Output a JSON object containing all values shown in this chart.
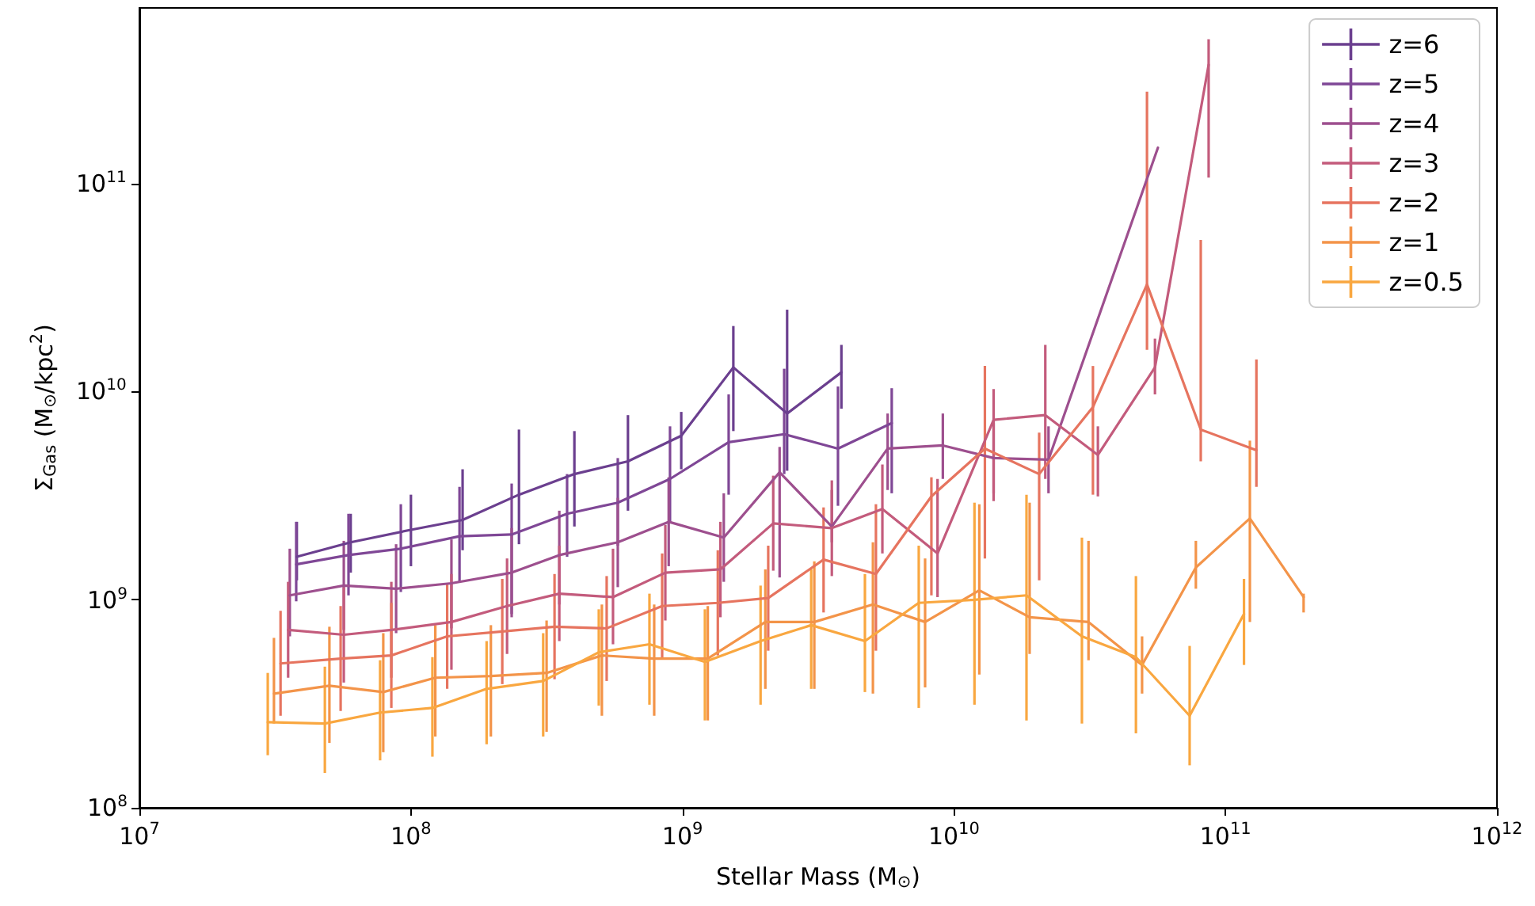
{
  "chart_data": {
    "type": "line",
    "xlabel": "Stellar Mass (M$_{⊙}$)",
    "ylabel": "Σ$_{Gas}$ (M$_{⊙}$/kpc$^{2}$)",
    "log": "xy",
    "grid": false,
    "legend": "top right",
    "marker": "none",
    "line_style": "solid",
    "xlim": [
      10000000.0,
      1000000000000.0
    ],
    "ylim": [
      100000000.0,
      700000000000.0
    ],
    "xticks": [
      {
        "value": 10000000.0,
        "label": "10$^{7}$"
      },
      {
        "value": 100000000.0,
        "label": "10$^{8}$"
      },
      {
        "value": 1000000000.0,
        "label": "10$^{9}$"
      },
      {
        "value": 10000000000.0,
        "label": "10$^{10}$"
      },
      {
        "value": 100000000000.0,
        "label": "10$^{11}$"
      },
      {
        "value": 1000000000000.0,
        "label": "10$^{12}$"
      }
    ],
    "yticks": [
      {
        "value": 100000000.0,
        "label": "10$^{8}$"
      },
      {
        "value": 1000000000.0,
        "label": "10$^{9}$"
      },
      {
        "value": 10000000000.0,
        "label": "10$^{10}$"
      },
      {
        "value": 100000000000.0,
        "label": "10$^{11}$"
      }
    ],
    "series": [
      {
        "name": "z=6",
        "color": "#6b3f8f",
        "x": [
          38000000.0,
          60000000.0,
          100000000.0,
          155000000.0,
          250000000.0,
          400000000.0,
          630000000.0,
          990000000.0,
          1540000000.0,
          2430000000.0,
          3850000000.0
        ],
        "values": [
          1610000000.0,
          1890000000.0,
          2170000000.0,
          2420000000.0,
          3200000000.0,
          4020000000.0,
          4630000000.0,
          6140000000.0,
          13100000000.0,
          7860000000.0,
          12400000000.0
        ],
        "errors": [
          [
            1240000000.0,
            2370000000.0
          ],
          [
            1350000000.0,
            2590000000.0
          ],
          [
            1450000000.0,
            3200000000.0
          ],
          [
            1730000000.0,
            4240000000.0
          ],
          [
            1850000000.0,
            6580000000.0
          ],
          [
            2250000000.0,
            6470000000.0
          ],
          [
            2680000000.0,
            7720000000.0
          ],
          [
            4240000000.0,
            8000000000.0
          ],
          [
            6470000000.0,
            20700000000.0
          ],
          [
            4170000000.0,
            24800000000.0
          ],
          [
            8290000000.0,
            16800000000.0
          ]
        ]
      },
      {
        "name": "z=5",
        "color": "#7f4796",
        "x": [
          37800000.0,
          58900000.0,
          91800000.0,
          151000000.0,
          235000000.0,
          376000000.0,
          578000000.0,
          900000000.0,
          1480000000.0,
          2370000000.0,
          3740000000.0,
          5900000000.0
        ],
        "values": [
          1480000000.0,
          1640000000.0,
          1760000000.0,
          2020000000.0,
          2060000000.0,
          2590000000.0,
          2930000000.0,
          3810000000.0,
          5720000000.0,
          6250000000.0,
          5330000000.0,
          7070000000.0
        ],
        "errors": [
          [
            983000000.0,
            2370000000.0
          ],
          [
            1050000000.0,
            2590000000.0
          ],
          [
            1090000000.0,
            2880000000.0
          ],
          [
            1220000000.0,
            3490000000.0
          ],
          [
            854000000.0,
            3620000000.0
          ],
          [
            1610000000.0,
            4020000000.0
          ],
          [
            1820000000.0,
            4800000000.0
          ],
          [
            2370000000.0,
            6820000000.0
          ],
          [
            3200000000.0,
            9710000000.0
          ],
          [
            4020000000.0,
            12900000000.0
          ],
          [
            2830000000.0,
            10600000000.0
          ],
          [
            3250000000.0,
            10400000000.0
          ]
        ]
      },
      {
        "name": "z=4",
        "color": "#9d4f8e",
        "x": [
          35800000.0,
          56600000.0,
          88200000.0,
          141000000.0,
          235000000.0,
          352000000.0,
          578000000.0,
          890000000.0,
          1420000000.0,
          2280000000.0,
          3550000000.0,
          5700000000.0,
          9100000000.0,
          14000000000.0,
          22300000000.0,
          56400000000.0
        ],
        "values": [
          1050000000.0,
          1170000000.0,
          1130000000.0,
          1200000000.0,
          1350000000.0,
          1640000000.0,
          1890000000.0,
          2370000000.0,
          1990000000.0,
          4100000000.0,
          2250000000.0,
          5330000000.0,
          5520000000.0,
          4800000000.0,
          4720000000.0,
          149000000000.0
        ],
        "errors": [
          [
            667000000.0,
            1760000000.0
          ],
          [
            716000000.0,
            1920000000.0
          ],
          [
            691000000.0,
            1850000000.0
          ],
          [
            729000000.0,
            1950000000.0
          ],
          [
            824000000.0,
            2210000000.0
          ],
          [
            949000000.0,
            2680000000.0
          ],
          [
            1150000000.0,
            3090000000.0
          ],
          [
            1450000000.0,
            3880000000.0
          ],
          [
            1220000000.0,
            3250000000.0
          ],
          [
            1280000000.0,
            5430000000.0
          ],
          [
            1890000000.0,
            3370000000.0
          ],
          [
            3370000000.0,
            7860000000.0
          ],
          [
            3810000000.0,
            7860000000.0
          ],
          [
            3250000000.0,
            7070000000.0
          ],
          [
            3250000000.0,
            6820000000.0
          ],
          null
        ]
      },
      {
        "name": "z=3",
        "color": "#c35b7c",
        "x": [
          35300000.0,
          56600000.0,
          84700000.0,
          141000000.0,
          226000000.0,
          352000000.0,
          555000000.0,
          865000000.0,
          1380000000.0,
          2160000000.0,
          3550000000.0,
          5450000000.0,
          8700000000.0,
          14000000000.0,
          21700000000.0,
          33900000000.0,
          55000000000.0,
          86700000000.0
        ],
        "values": [
          716000000.0,
          679000000.0,
          716000000.0,
          782000000.0,
          933000000.0,
          1070000000.0,
          1030000000.0,
          1350000000.0,
          1400000000.0,
          2330000000.0,
          2210000000.0,
          2730000000.0,
          1670000000.0,
          7330000000.0,
          7720000000.0,
          4970000000.0,
          13100000000.0,
          373000000000.0
        ],
        "errors": [
          [
            422000000.0,
            1220000000.0
          ],
          [
            400000000.0,
            1150000000.0
          ],
          [
            422000000.0,
            1220000000.0
          ],
          [
            461000000.0,
            1330000000.0
          ],
          [
            549000000.0,
            1580000000.0
          ],
          [
            633000000.0,
            1820000000.0
          ],
          [
            611000000.0,
            1760000000.0
          ],
          [
            795000000.0,
            2290000000.0
          ],
          [
            824000000.0,
            2370000000.0
          ],
          [
            1380000000.0,
            3950000000.0
          ],
          [
            1300000000.0,
            3750000000.0
          ],
          [
            1670000000.0,
            4470000000.0
          ],
          [
            1030000000.0,
            3810000000.0
          ],
          [
            2980000000.0,
            10300000000.0
          ],
          [
            3810000000.0,
            16800000000.0
          ],
          [
            3140000000.0,
            6820000000.0
          ],
          [
            9710000000.0,
            18000000000.0
          ],
          [
            107000000000.0,
            495000000000.0
          ]
        ]
      },
      {
        "name": "z=2",
        "color": "#e6745f",
        "x": [
          33100000.0,
          55100000.0,
          84700000.0,
          136000000.0,
          217000000.0,
          338000000.0,
          526000000.0,
          842000000.0,
          1350000000.0,
          2070000000.0,
          3310000000.0,
          5160000000.0,
          8260000000.0,
          13000000000.0,
          20600000000.0,
          32500000000.0,
          51400000000.0,
          81100000000.0,
          130000000000.0
        ],
        "values": [
          494000000.0,
          521000000.0,
          540000000.0,
          667000000.0,
          704000000.0,
          742000000.0,
          729000000.0,
          933000000.0,
          966000000.0,
          1020000000.0,
          1560000000.0,
          1330000000.0,
          3140000000.0,
          5330000000.0,
          4020000000.0,
          8440000000.0,
          32800000000.0,
          6580000000.0,
          5240000000.0
        ],
        "errors": [
          [
            277000000.0,
            885000000.0
          ],
          [
            292000000.0,
            933000000.0
          ],
          [
            302000000.0,
            966000000.0
          ],
          [
            373000000.0,
            1200000000.0
          ],
          [
            393000000.0,
            1260000000.0
          ],
          [
            415000000.0,
            1330000000.0
          ],
          [
            407000000.0,
            1300000000.0
          ],
          [
            521000000.0,
            1670000000.0
          ],
          [
            540000000.0,
            1730000000.0
          ],
          [
            569000000.0,
            1820000000.0
          ],
          [
            869000000.0,
            2780000000.0
          ],
          [
            569000000.0,
            2880000000.0
          ],
          [
            1050000000.0,
            3880000000.0
          ],
          [
            1580000000.0,
            13300000000.0
          ],
          [
            1240000000.0,
            6360000000.0
          ],
          [
            3200000000.0,
            13300000000.0
          ],
          [
            15900000000.0,
            277000000000.0
          ],
          [
            4630000000.0,
            53700000000.0
          ],
          [
            3490000000.0,
            14300000000.0
          ]
        ]
      },
      {
        "name": "z=1",
        "color": "#f39449",
        "x": [
          31300000.0,
          50100000.0,
          79100000.0,
          123000000.0,
          197000000.0,
          316000000.0,
          505000000.0,
          787000000.0,
          1240000000.0,
          2020000000.0,
          3060000000.0,
          5030000000.0,
          7830000000.0,
          12400000000.0,
          19000000000.0,
          31300000000.0,
          49300000000.0,
          77800000000.0,
          123000000000.0,
          194000000000.0
        ],
        "values": [
          354000000.0,
          386000000.0,
          360000000.0,
          422000000.0,
          430000000.0,
          445000000.0,
          540000000.0,
          521000000.0,
          521000000.0,
          782000000.0,
          782000000.0,
          949000000.0,
          782000000.0,
          1110000000.0,
          824000000.0,
          782000000.0,
          486000000.0,
          1430000000.0,
          2460000000.0,
          1030000000.0
        ],
        "errors": [
          [
            254000000.0,
            656000000.0
          ],
          [
            205000000.0,
            742000000.0
          ],
          [
            185000000.0,
            691000000.0
          ],
          [
            220000000.0,
            755000000.0
          ],
          [
            220000000.0,
            755000000.0
          ],
          [
            232000000.0,
            795000000.0
          ],
          [
            277000000.0,
            949000000.0
          ],
          [
            277000000.0,
            949000000.0
          ],
          [
            263000000.0,
            933000000.0
          ],
          [
            373000000.0,
            1400000000.0
          ],
          [
            373000000.0,
            1530000000.0
          ],
          [
            354000000.0,
            1890000000.0
          ],
          [
            379000000.0,
            1580000000.0
          ],
          [
            437000000.0,
            2880000000.0
          ],
          [
            549000000.0,
            2930000000.0
          ],
          [
            512000000.0,
            1920000000.0
          ],
          [
            354000000.0,
            667000000.0
          ],
          [
            1130000000.0,
            1920000000.0
          ],
          [
            782000000.0,
            5820000000.0
          ],
          [
            869000000.0,
            1070000000.0
          ]
        ]
      },
      {
        "name": "z=0.5",
        "color": "#f9a740",
        "x": [
          29700000.0,
          48200000.0,
          77000000.0,
          120000000.0,
          190000000.0,
          307000000.0,
          492000000.0,
          756000000.0,
          1210000000.0,
          1940000000.0,
          2980000000.0,
          4700000000.0,
          7420000000.0,
          11900000000.0,
          18500000000.0,
          29600000000.0,
          46800000000.0,
          73800000000.0,
          117000000000.0
        ],
        "values": [
          258000000.0,
          254000000.0,
          287000000.0,
          302000000.0,
          373000000.0,
          407000000.0,
          559000000.0,
          611000000.0,
          503000000.0,
          633000000.0,
          755000000.0,
          633000000.0,
          966000000.0,
          1000000000.0,
          1050000000.0,
          667000000.0,
          530000000.0,
          277000000.0,
          854000000.0
        ],
        "errors": [
          [
            179000000.0,
            445000000.0
          ],
          [
            147000000.0,
            477000000.0
          ],
          [
            169000000.0,
            512000000.0
          ],
          [
            176000000.0,
            530000000.0
          ],
          [
            202000000.0,
            633000000.0
          ],
          [
            220000000.0,
            691000000.0
          ],
          [
            310000000.0,
            900000000.0
          ],
          [
            313000000.0,
            1070000000.0
          ],
          [
            263000000.0,
            900000000.0
          ],
          [
            313000000.0,
            1170000000.0
          ],
          [
            373000000.0,
            1400000000.0
          ],
          [
            360000000.0,
            1330000000.0
          ],
          [
            302000000.0,
            1820000000.0
          ],
          [
            313000000.0,
            2930000000.0
          ],
          [
            263000000.0,
            3200000000.0
          ],
          [
            254000000.0,
            1990000000.0
          ],
          [
            228000000.0,
            1300000000.0
          ],
          [
            160000000.0,
            600000000.0
          ],
          [
            486000000.0,
            1260000000.0
          ]
        ]
      }
    ]
  }
}
